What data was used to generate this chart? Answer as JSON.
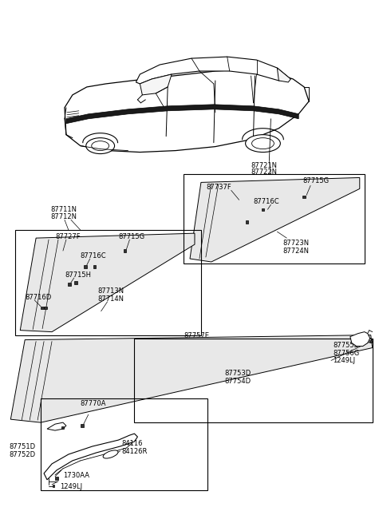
{
  "bg_color": "#ffffff",
  "line_color": "#000000",
  "text_color": "#000000",
  "labels": {
    "car_label1": "87721N",
    "car_label2": "87722N",
    "b1_l1": "87711N",
    "b1_l2": "87712N",
    "b1_l3": "87727F",
    "b1_l4": "87715G",
    "b1_l5": "87716C",
    "b1_l6": "87715H",
    "b1_l7": "87716D",
    "b1_l8": "87713N",
    "b1_l9": "87714N",
    "b2_l1": "87737F",
    "b2_l2": "87715G",
    "b2_l3": "87716C",
    "b2_l4": "87723N",
    "b2_l5": "87724N",
    "b3_l1": "87757E",
    "b3_l2": "87753D",
    "b3_l3": "87754D",
    "b3_l4": "87755B",
    "b3_l5": "87756G",
    "b3_l6": "1249LJ",
    "b4_l1": "87770A",
    "b4_l2": "87751D",
    "b4_l3": "87752D",
    "b4_l4": "84116",
    "b4_l5": "84126R",
    "b4_l6": "1730AA",
    "b4_l7": "1249LJ"
  },
  "fs": 6.0
}
